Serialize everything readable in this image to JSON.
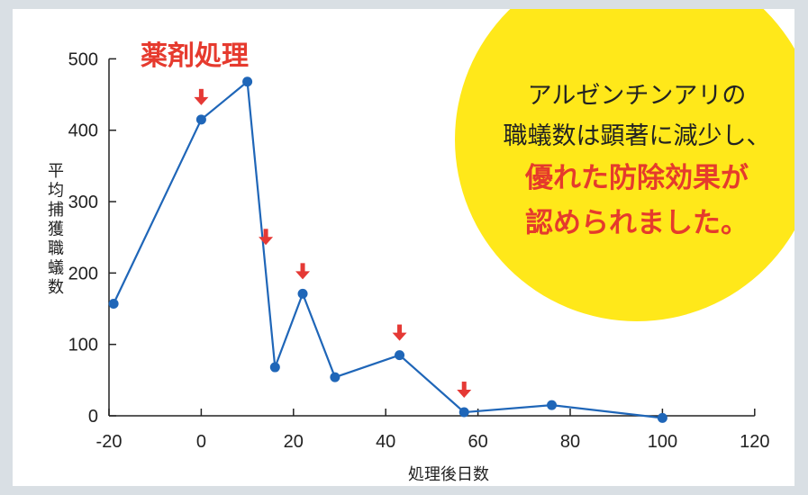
{
  "chart_data": {
    "type": "line",
    "treatment_label": "薬剤処理",
    "xlabel": "処理後日数",
    "ylabel": "平均捕獲職蟻数",
    "xlim": [
      -20,
      120
    ],
    "ylim": [
      0,
      500
    ],
    "x_ticks": [
      -20,
      0,
      20,
      40,
      60,
      80,
      100,
      120
    ],
    "y_ticks": [
      0,
      100,
      200,
      300,
      400,
      500
    ],
    "grid": false,
    "series": [
      {
        "color": "#1f66b8",
        "points": [
          {
            "x": -19,
            "y": 157
          },
          {
            "x": 0,
            "y": 415
          },
          {
            "x": 10,
            "y": 468
          },
          {
            "x": 16,
            "y": 68
          },
          {
            "x": 22,
            "y": 171
          },
          {
            "x": 29,
            "y": 54
          },
          {
            "x": 43,
            "y": 85
          },
          {
            "x": 57,
            "y": 5
          },
          {
            "x": 76,
            "y": 15
          },
          {
            "x": 100,
            "y": -3
          }
        ]
      }
    ],
    "treatment_days": [
      0,
      14,
      22,
      43,
      57
    ],
    "marker_color": "#e53935"
  },
  "callout": {
    "line1": "アルゼンチンアリの",
    "line2": "職蟻数は顕著に減少し、",
    "line3": "優れた防除効果が",
    "line4": "認められました。",
    "badge_color": "#ffe81a",
    "text_accent_color": "#e53b2c"
  }
}
